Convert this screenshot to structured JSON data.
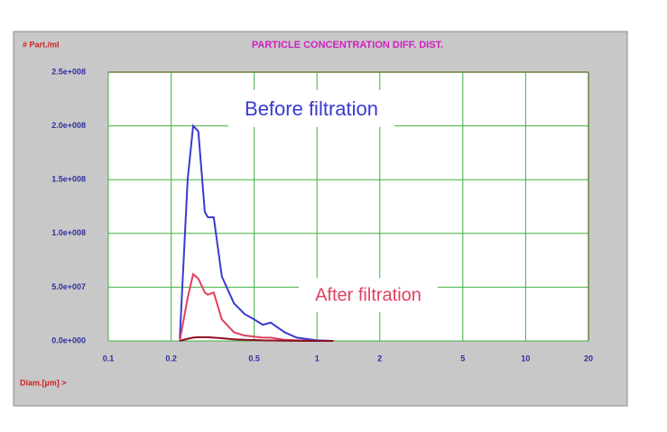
{
  "chart_data": {
    "type": "line",
    "title": "PARTICLE CONCENTRATION DIFF. DIST.",
    "y_label": "# Part./ml",
    "x_label": "Diam.[µm] >",
    "x": [
      0.22,
      0.24,
      0.255,
      0.27,
      0.29,
      0.3,
      0.32,
      0.35,
      0.4,
      0.45,
      0.5,
      0.55,
      0.6,
      0.7,
      0.8,
      1.0,
      1.2
    ],
    "series": [
      {
        "name": "Before filtration",
        "color": "#3a3ad0",
        "values": [
          2000000,
          150000000,
          200000000,
          195000000,
          120000000,
          115000000,
          115000000,
          60000000,
          35000000,
          25000000,
          20000000,
          15000000,
          17000000,
          8000000,
          3000000,
          500000,
          0
        ]
      },
      {
        "name": "After filtration",
        "color": "#e04060",
        "values": [
          0,
          40000000,
          62000000,
          58000000,
          45000000,
          43000000,
          45000000,
          20000000,
          8000000,
          5000000,
          4000000,
          3000000,
          3000000,
          1000000,
          500000,
          0,
          0
        ]
      },
      {
        "color": "#8a1020",
        "values": [
          0,
          2000000,
          3000000,
          3500000,
          3500000,
          3500000,
          3000000,
          2500000,
          1500000,
          1000000,
          800000,
          500000,
          400000,
          200000,
          100000,
          0,
          0
        ]
      }
    ],
    "log_x": true,
    "xlim": [
      0.1,
      20
    ],
    "xticks": [
      0.1,
      0.2,
      0.5,
      1,
      2,
      5,
      10,
      20
    ],
    "ylim": [
      0,
      250000000
    ],
    "yticks": [
      {
        "value": 0,
        "label": "0.0e+000"
      },
      {
        "value": 50000000,
        "label": "5.0e+007"
      },
      {
        "value": 100000000,
        "label": "1.0e+008"
      },
      {
        "value": 150000000,
        "label": "1.5e+008"
      },
      {
        "value": 200000000,
        "label": "2.0e+008"
      },
      {
        "value": 250000000,
        "label": "2.5e+008"
      }
    ],
    "grid": true
  }
}
